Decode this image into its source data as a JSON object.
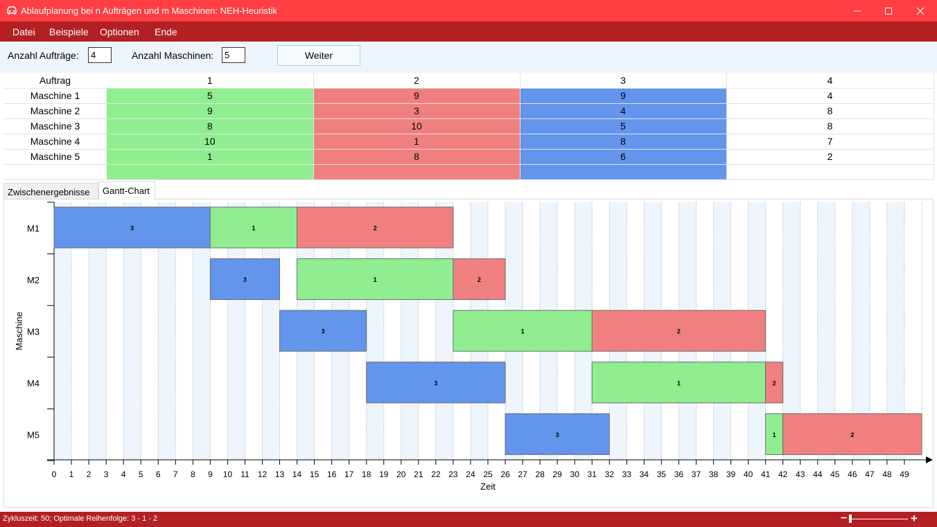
{
  "window": {
    "title": "Ablaufplanung bei n Aufträgen und m Maschinen: NEH-Heuristik",
    "minimize_icon": "minimize-icon",
    "maximize_icon": "maximize-icon",
    "close_icon": "close-icon"
  },
  "menu": {
    "items": [
      "Datei",
      "Beispiele",
      "Optionen",
      "Ende"
    ]
  },
  "toolbar": {
    "auftraege_label": "Anzahl Aufträge:",
    "auftraege_value": "4",
    "maschinen_label": "Anzahl Maschinen:",
    "maschinen_value": "5",
    "weiter_label": "Weiter"
  },
  "job_table": {
    "header_label": "Auftrag",
    "jobs": [
      "1",
      "2",
      "3",
      "4"
    ],
    "rows": [
      {
        "label": "Maschine 1",
        "values": [
          "5",
          "9",
          "9",
          "4"
        ]
      },
      {
        "label": "Maschine 2",
        "values": [
          "9",
          "3",
          "4",
          "8"
        ]
      },
      {
        "label": "Maschine 3",
        "values": [
          "8",
          "10",
          "5",
          "8"
        ]
      },
      {
        "label": "Maschine 4",
        "values": [
          "10",
          "1",
          "8",
          "7"
        ]
      },
      {
        "label": "Maschine 5",
        "values": [
          "1",
          "8",
          "6",
          "2"
        ]
      }
    ],
    "job_colors": [
      "#90ee90",
      "#f08080",
      "#6495ed",
      ""
    ]
  },
  "tabs": {
    "zwischenergebnisse": "Zwischenergebnisse",
    "gantt": "Gantt-Chart"
  },
  "chart_data": {
    "type": "gantt",
    "xlabel": "Zeit",
    "ylabel": "Maschine",
    "x_ticks": [
      0,
      1,
      2,
      3,
      4,
      5,
      6,
      7,
      8,
      9,
      10,
      11,
      12,
      13,
      14,
      15,
      16,
      17,
      18,
      19,
      20,
      21,
      22,
      23,
      24,
      25,
      26,
      27,
      28,
      29,
      30,
      31,
      32,
      33,
      34,
      35,
      36,
      37,
      38,
      39,
      40,
      41,
      42,
      43,
      44,
      45,
      46,
      47,
      48,
      49
    ],
    "xlim": [
      0,
      50
    ],
    "machines": [
      "M1",
      "M2",
      "M3",
      "M4",
      "M5"
    ],
    "job_colors": {
      "1": "#90ee90",
      "2": "#f08080",
      "3": "#6495ed"
    },
    "bars": [
      {
        "machine": "M1",
        "job": "3",
        "start": 0,
        "end": 9
      },
      {
        "machine": "M1",
        "job": "1",
        "start": 9,
        "end": 14
      },
      {
        "machine": "M1",
        "job": "2",
        "start": 14,
        "end": 23
      },
      {
        "machine": "M2",
        "job": "3",
        "start": 9,
        "end": 13
      },
      {
        "machine": "M2",
        "job": "1",
        "start": 14,
        "end": 23
      },
      {
        "machine": "M2",
        "job": "2",
        "start": 23,
        "end": 26
      },
      {
        "machine": "M3",
        "job": "3",
        "start": 13,
        "end": 18
      },
      {
        "machine": "M3",
        "job": "1",
        "start": 23,
        "end": 31
      },
      {
        "machine": "M3",
        "job": "2",
        "start": 31,
        "end": 41
      },
      {
        "machine": "M4",
        "job": "3",
        "start": 18,
        "end": 26
      },
      {
        "machine": "M4",
        "job": "1",
        "start": 31,
        "end": 41
      },
      {
        "machine": "M4",
        "job": "2",
        "start": 41,
        "end": 42
      },
      {
        "machine": "M5",
        "job": "3",
        "start": 26,
        "end": 32
      },
      {
        "machine": "M5",
        "job": "1",
        "start": 41,
        "end": 42
      },
      {
        "machine": "M5",
        "job": "2",
        "start": 42,
        "end": 50
      }
    ]
  },
  "status": {
    "text": "Zykluszeit: 50; Optimale Reihenfolge: 3 - 1 - 2",
    "zoom_out": "−",
    "zoom_in": "+"
  }
}
